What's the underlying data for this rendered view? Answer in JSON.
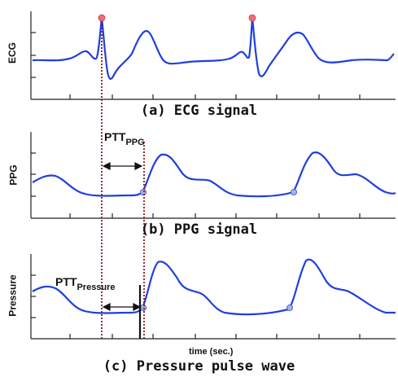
{
  "colors": {
    "signal": "#1f3fe0",
    "peak_marker": "#f06c7a",
    "foot_marker": "#9fb3e8",
    "guide_line": "#8b1a1a",
    "axis": "#222222"
  },
  "panels": {
    "ecg": {
      "ylabel": "ECG",
      "caption": "(a) ECG signal"
    },
    "ppg": {
      "ylabel": "PPG",
      "caption": "(b) PPG signal"
    },
    "pressure": {
      "ylabel": "Pressure",
      "caption": "(c) Pressure pulse wave",
      "xlabel": "time (sec.)"
    }
  },
  "annotations": {
    "ptt_ppg": {
      "main": "PTT",
      "sub": "PPG"
    },
    "ptt_pressure": {
      "main": "PTT",
      "sub": "Pressure"
    }
  },
  "icons": {
    "r_peak": "circle-marker",
    "pulse_foot": "circle-marker",
    "ptt_span": "double-arrow"
  }
}
